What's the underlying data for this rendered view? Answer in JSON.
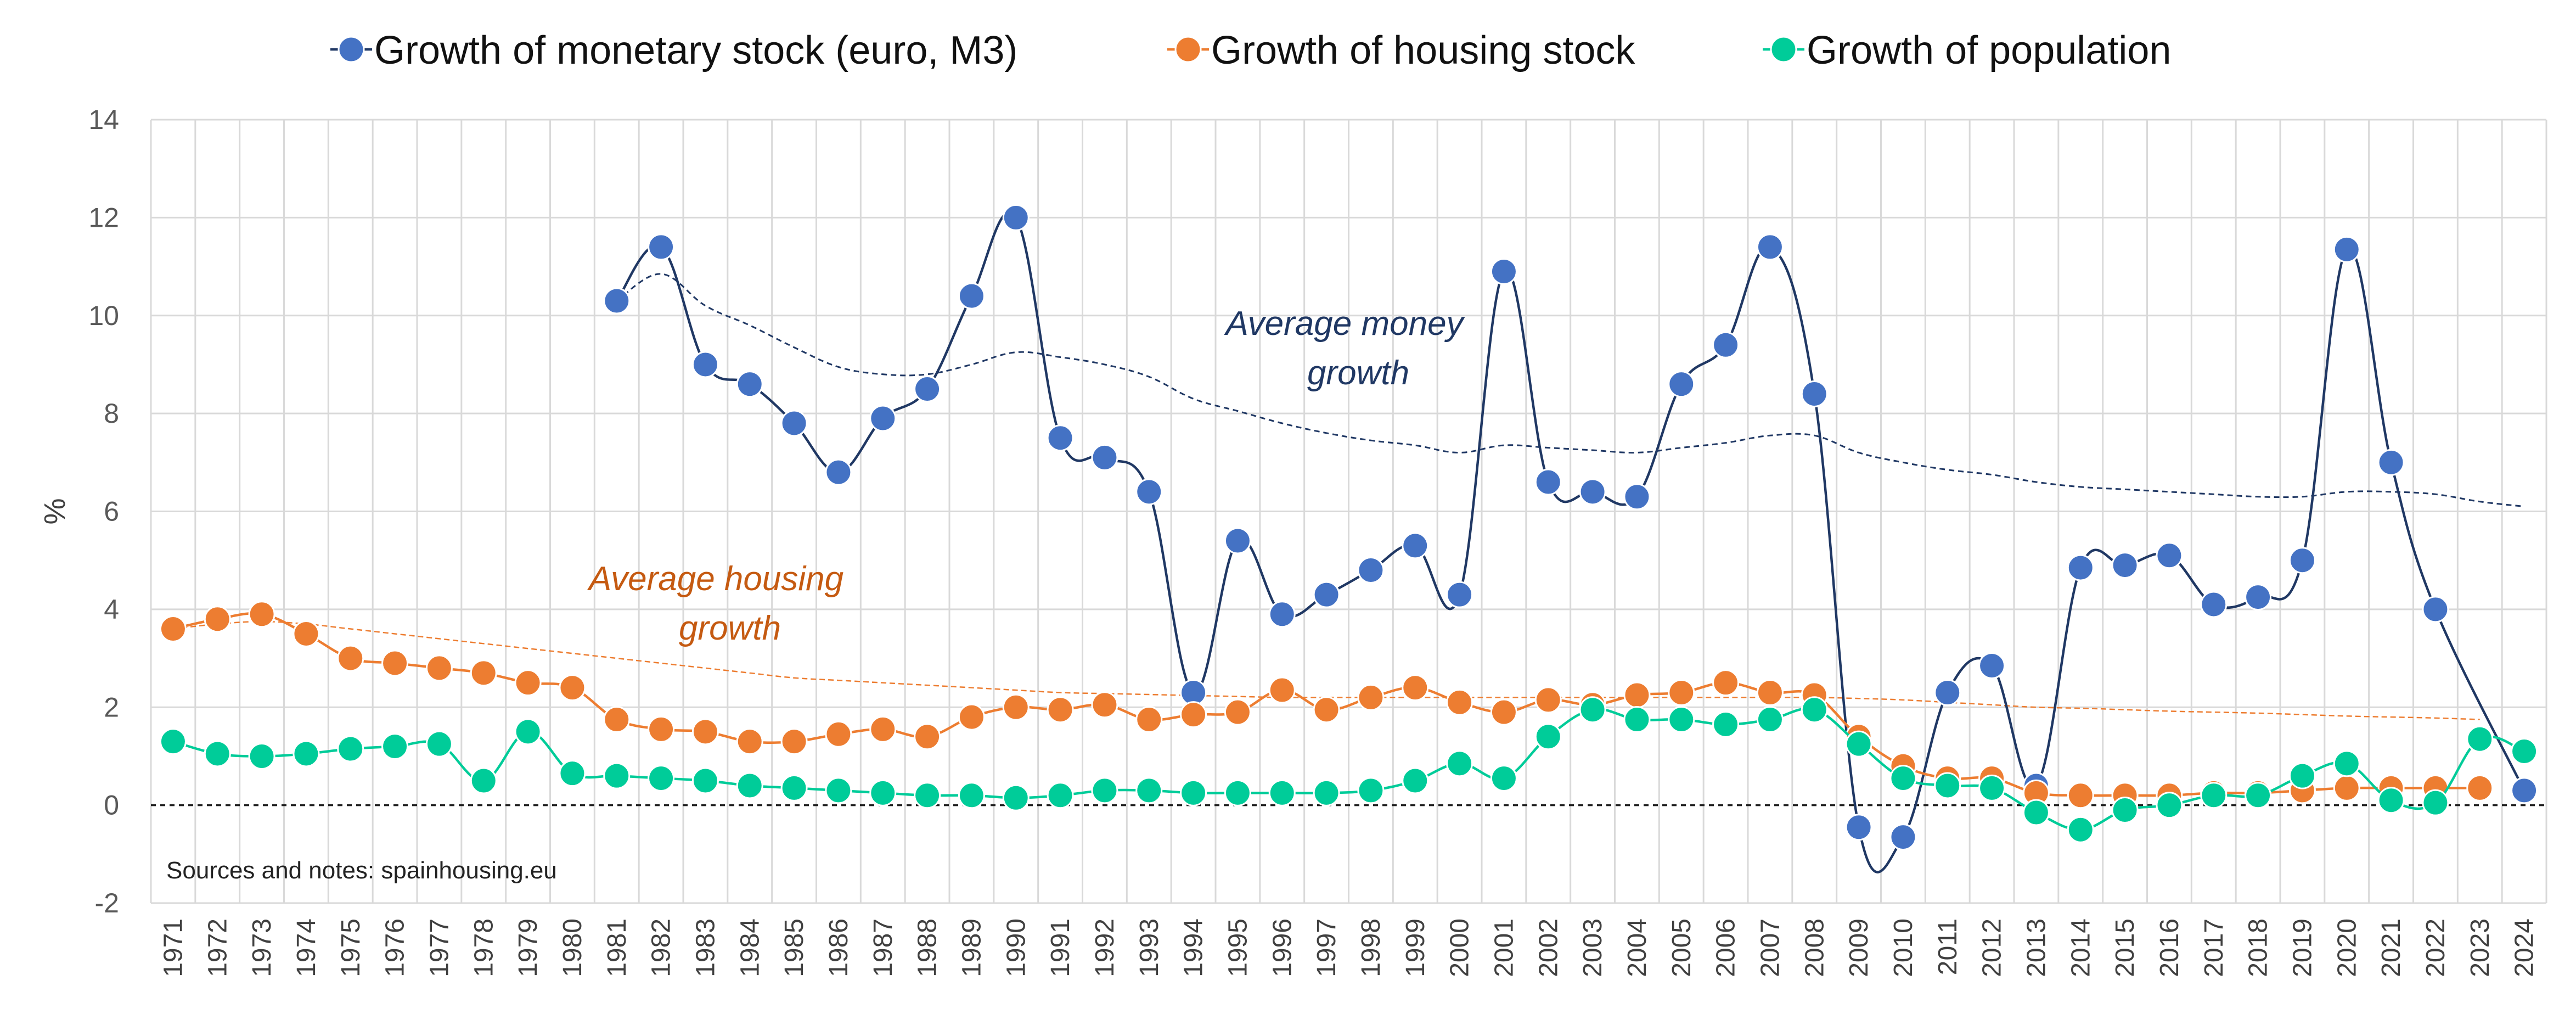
{
  "chart_data": {
    "type": "line",
    "x": [
      1971,
      1972,
      1973,
      1974,
      1975,
      1976,
      1977,
      1978,
      1979,
      1980,
      1981,
      1982,
      1983,
      1984,
      1985,
      1986,
      1987,
      1988,
      1989,
      1990,
      1991,
      1992,
      1993,
      1994,
      1995,
      1996,
      1997,
      1998,
      1999,
      2000,
      2001,
      2002,
      2003,
      2004,
      2005,
      2006,
      2007,
      2008,
      2009,
      2010,
      2011,
      2012,
      2013,
      2014,
      2015,
      2016,
      2017,
      2018,
      2019,
      2020,
      2021,
      2022,
      2023,
      2024
    ],
    "ylabel": "%",
    "ylim": [
      -2,
      14
    ],
    "yticks": [
      -2,
      0,
      2,
      4,
      6,
      8,
      10,
      12,
      14
    ],
    "grid": true,
    "legend_position": "top",
    "series": [
      {
        "name": "Growth of monetary stock (euro, M3)",
        "color": "#4472C4",
        "line_color": "#203864",
        "values": [
          null,
          null,
          null,
          null,
          null,
          null,
          null,
          null,
          null,
          null,
          10.3,
          11.4,
          9.0,
          8.6,
          7.8,
          6.8,
          7.9,
          8.5,
          10.4,
          12.0,
          7.5,
          7.1,
          6.4,
          2.3,
          5.4,
          3.9,
          4.3,
          4.8,
          5.3,
          4.3,
          10.9,
          6.6,
          6.4,
          6.3,
          8.6,
          9.4,
          11.4,
          8.4,
          -0.45,
          -0.65,
          2.3,
          2.85,
          0.4,
          4.85,
          4.9,
          5.1,
          4.1,
          4.25,
          5.0,
          11.35,
          7.0,
          4.0,
          null,
          0.3
        ]
      },
      {
        "name": "Growth of housing stock",
        "color": "#ED7D31",
        "line_color": "#ED7D31",
        "values": [
          3.6,
          3.8,
          3.9,
          3.5,
          3.0,
          2.9,
          2.8,
          2.7,
          2.5,
          2.4,
          1.75,
          1.55,
          1.5,
          1.3,
          1.3,
          1.45,
          1.55,
          1.4,
          1.8,
          2.0,
          1.95,
          2.05,
          1.75,
          1.85,
          1.9,
          2.35,
          1.95,
          2.2,
          2.4,
          2.1,
          1.9,
          2.15,
          2.05,
          2.25,
          2.3,
          2.5,
          2.3,
          2.25,
          1.4,
          0.8,
          0.55,
          0.55,
          0.25,
          0.2,
          0.2,
          0.2,
          0.25,
          0.25,
          0.3,
          0.35,
          0.35,
          0.35,
          0.35,
          null
        ]
      },
      {
        "name": "Growth of population",
        "color": "#00CC99",
        "line_color": "#00CC99",
        "values": [
          1.3,
          1.05,
          1.0,
          1.05,
          1.15,
          1.2,
          1.25,
          0.5,
          1.5,
          0.65,
          0.6,
          0.55,
          0.5,
          0.4,
          0.35,
          0.3,
          0.25,
          0.2,
          0.2,
          0.15,
          0.2,
          0.3,
          0.3,
          0.25,
          0.25,
          0.25,
          0.25,
          0.3,
          0.5,
          0.85,
          0.55,
          1.4,
          1.95,
          1.75,
          1.75,
          1.65,
          1.75,
          1.95,
          1.25,
          0.55,
          0.4,
          0.35,
          -0.15,
          -0.5,
          -0.1,
          0.0,
          0.2,
          0.2,
          0.6,
          0.85,
          0.1,
          0.05,
          1.35,
          1.1
        ]
      }
    ],
    "trend_lines": [
      {
        "series": "Growth of monetary stock (euro, M3)",
        "label": "Average money growth",
        "values": [
          null,
          null,
          null,
          null,
          null,
          null,
          null,
          null,
          null,
          null,
          10.3,
          10.85,
          10.2,
          9.8,
          9.35,
          8.95,
          8.8,
          8.8,
          9.0,
          9.25,
          9.15,
          9.0,
          8.75,
          8.3,
          8.05,
          7.8,
          7.6,
          7.45,
          7.35,
          7.2,
          7.35,
          7.3,
          7.25,
          7.2,
          7.3,
          7.4,
          7.55,
          7.55,
          7.2,
          7.0,
          6.85,
          6.75,
          6.6,
          6.5,
          6.45,
          6.4,
          6.35,
          6.3,
          6.3,
          6.4,
          6.4,
          6.35,
          6.2,
          6.1
        ]
      },
      {
        "series": "Growth of housing stock",
        "label": "Average housing growth",
        "values": [
          3.6,
          3.7,
          3.75,
          3.7,
          3.6,
          3.5,
          3.4,
          3.3,
          3.2,
          3.1,
          3.0,
          2.9,
          2.8,
          2.7,
          2.6,
          2.55,
          2.5,
          2.45,
          2.4,
          2.35,
          2.3,
          2.28,
          2.26,
          2.24,
          2.22,
          2.2,
          2.2,
          2.2,
          2.2,
          2.2,
          2.2,
          2.2,
          2.2,
          2.2,
          2.2,
          2.2,
          2.2,
          2.2,
          2.18,
          2.15,
          2.1,
          2.05,
          2.0,
          1.98,
          1.95,
          1.92,
          1.9,
          1.88,
          1.85,
          1.82,
          1.8,
          1.78,
          1.75,
          null
        ]
      }
    ],
    "annotations": [
      {
        "lines": [
          "Average money",
          "growth"
        ],
        "color": "#203864"
      },
      {
        "lines": [
          "Average housing",
          "growth"
        ],
        "color": "#C55A11"
      }
    ],
    "source_note": "Sources and notes: spainhousing.eu"
  }
}
